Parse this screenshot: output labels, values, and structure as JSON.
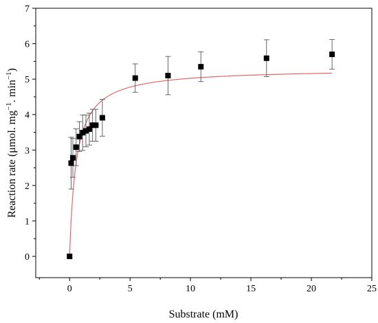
{
  "chart_data": {
    "type": "scatter",
    "xlabel": "Substrate (mM)",
    "ylabel_parts": [
      "Reaction rate (μmol. mg",
      "−1",
      ". min",
      "−1",
      ")"
    ],
    "xlim": [
      -2.8,
      25
    ],
    "ylim": [
      -0.6,
      7
    ],
    "xticks": [
      0,
      5,
      10,
      15,
      20,
      25
    ],
    "yticks": [
      0,
      1,
      2,
      3,
      4,
      5,
      6,
      7
    ],
    "grid": false,
    "legend": "none",
    "marker_color": "#000000",
    "fit_color": "#e06666",
    "points": [
      {
        "x": 0.0,
        "y": 0.0,
        "err": 0.0
      },
      {
        "x": 0.13,
        "y": 2.63,
        "err": 0.73
      },
      {
        "x": 0.27,
        "y": 2.78,
        "err": 0.55
      },
      {
        "x": 0.54,
        "y": 3.08,
        "err": 0.52
      },
      {
        "x": 0.81,
        "y": 3.38,
        "err": 0.42
      },
      {
        "x": 1.08,
        "y": 3.49,
        "err": 0.5
      },
      {
        "x": 1.35,
        "y": 3.54,
        "err": 0.45
      },
      {
        "x": 1.63,
        "y": 3.59,
        "err": 0.45
      },
      {
        "x": 1.9,
        "y": 3.7,
        "err": 0.45
      },
      {
        "x": 2.17,
        "y": 3.7,
        "err": 0.45
      },
      {
        "x": 2.71,
        "y": 3.91,
        "err": 0.52
      },
      {
        "x": 5.43,
        "y": 5.03,
        "err": 0.4
      },
      {
        "x": 8.14,
        "y": 5.1,
        "err": 0.54
      },
      {
        "x": 10.86,
        "y": 5.35,
        "err": 0.42
      },
      {
        "x": 16.29,
        "y": 5.59,
        "err": 0.52
      },
      {
        "x": 21.71,
        "y": 5.7,
        "err": 0.42
      }
    ],
    "fit": {
      "model": "michaelis-menten",
      "vmax": 5.3,
      "km": 0.55,
      "x_range": [
        0,
        21.71
      ]
    }
  }
}
